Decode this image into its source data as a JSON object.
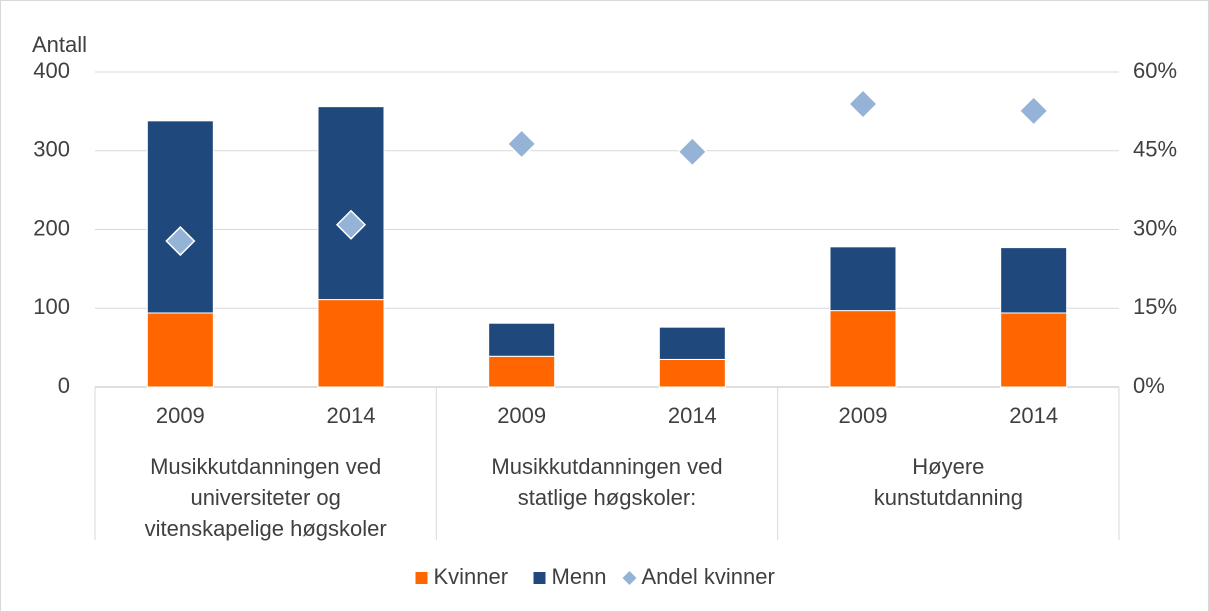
{
  "chart_data": {
    "type": "bar",
    "stacked": true,
    "y_label": "Antall",
    "categories": [
      "2009",
      "2014",
      "2009",
      "2014",
      "2009",
      "2014"
    ],
    "groups": [
      [
        "Musikkutdanningen ved",
        "universiteter og",
        "vitenskapelige høgskoler"
      ],
      [
        "Musikkutdanningen ved",
        "statlige høgskoler:"
      ],
      [
        "Høyere",
        "kunstutdanning"
      ]
    ],
    "series": [
      {
        "name": "Kvinner",
        "color": "#ff6600",
        "values": [
          94,
          111,
          39,
          35,
          97,
          94
        ]
      },
      {
        "name": "Menn",
        "color": "#1f497d",
        "values": [
          244,
          245,
          42,
          41,
          81,
          83
        ]
      },
      {
        "name": "Andel kvinner",
        "color": "#95b3d7",
        "axis": "y2",
        "marker": "diamond",
        "values": [
          27.8,
          30.9,
          46.3,
          44.8,
          53.9,
          52.6
        ]
      }
    ],
    "ylim": [
      0,
      400
    ],
    "yticks": [
      0,
      100,
      200,
      300,
      400
    ],
    "y2lim": [
      0,
      60
    ],
    "y2ticks": [
      {
        "value": 0,
        "label": "0%"
      },
      {
        "value": 15,
        "label": "15%"
      },
      {
        "value": 30,
        "label": "30%"
      },
      {
        "value": 45,
        "label": "45%"
      },
      {
        "value": 60,
        "label": "60%"
      }
    ],
    "grid": true,
    "legend": "bottom"
  }
}
